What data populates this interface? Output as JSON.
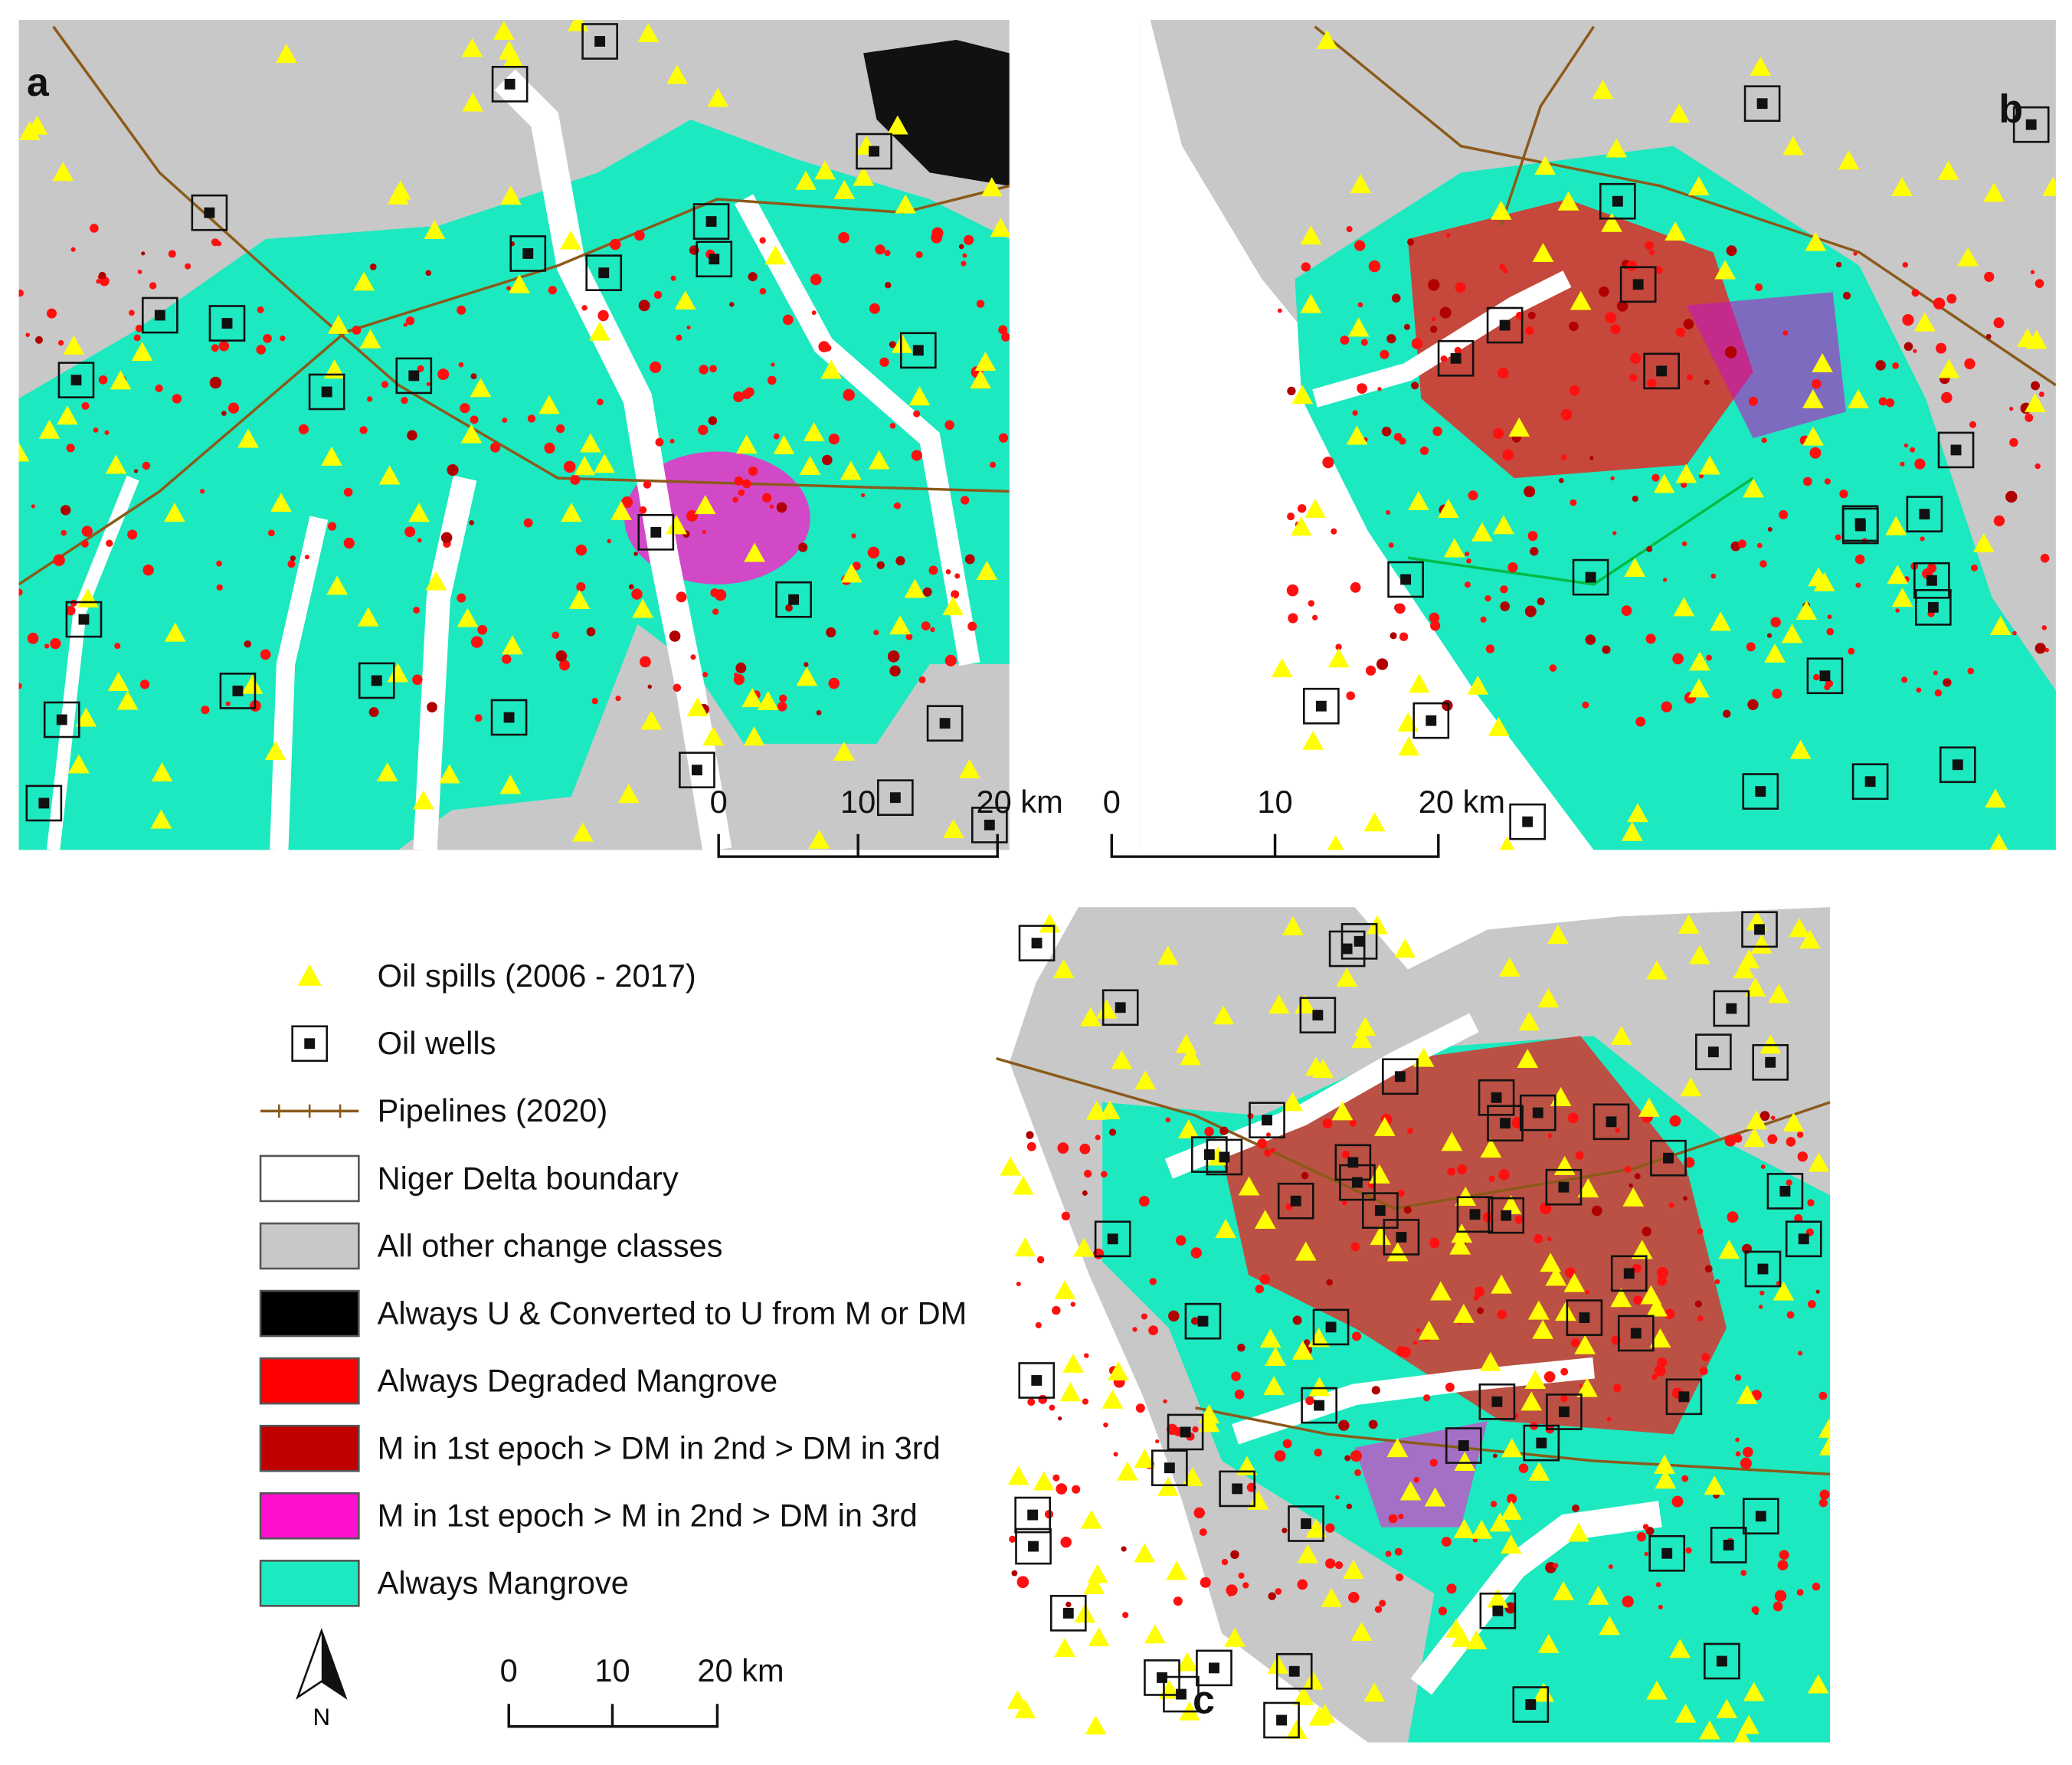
{
  "panels": [
    {
      "label": "a",
      "scale_bar": [
        "0",
        "10",
        "20 km"
      ]
    },
    {
      "label": "b",
      "scale_bar": [
        "0",
        "10",
        "20 km"
      ]
    },
    {
      "label": "c"
    }
  ],
  "legend": {
    "items": [
      "Oil spills (2006 - 2017)",
      "Oil wells",
      "Pipelines (2020)",
      "Niger Delta boundary",
      "All other change classes",
      "Always U & Converted to U from M or DM",
      "Always Degraded Mangrove",
      "M in 1st epoch > DM in 2nd > DM in 3rd",
      "M in 1st epoch > M in 2nd > DM in 3rd",
      "Always Mangrove"
    ]
  },
  "scale_bar": [
    "0",
    "10",
    "20 km"
  ],
  "north_arrow": "N"
}
